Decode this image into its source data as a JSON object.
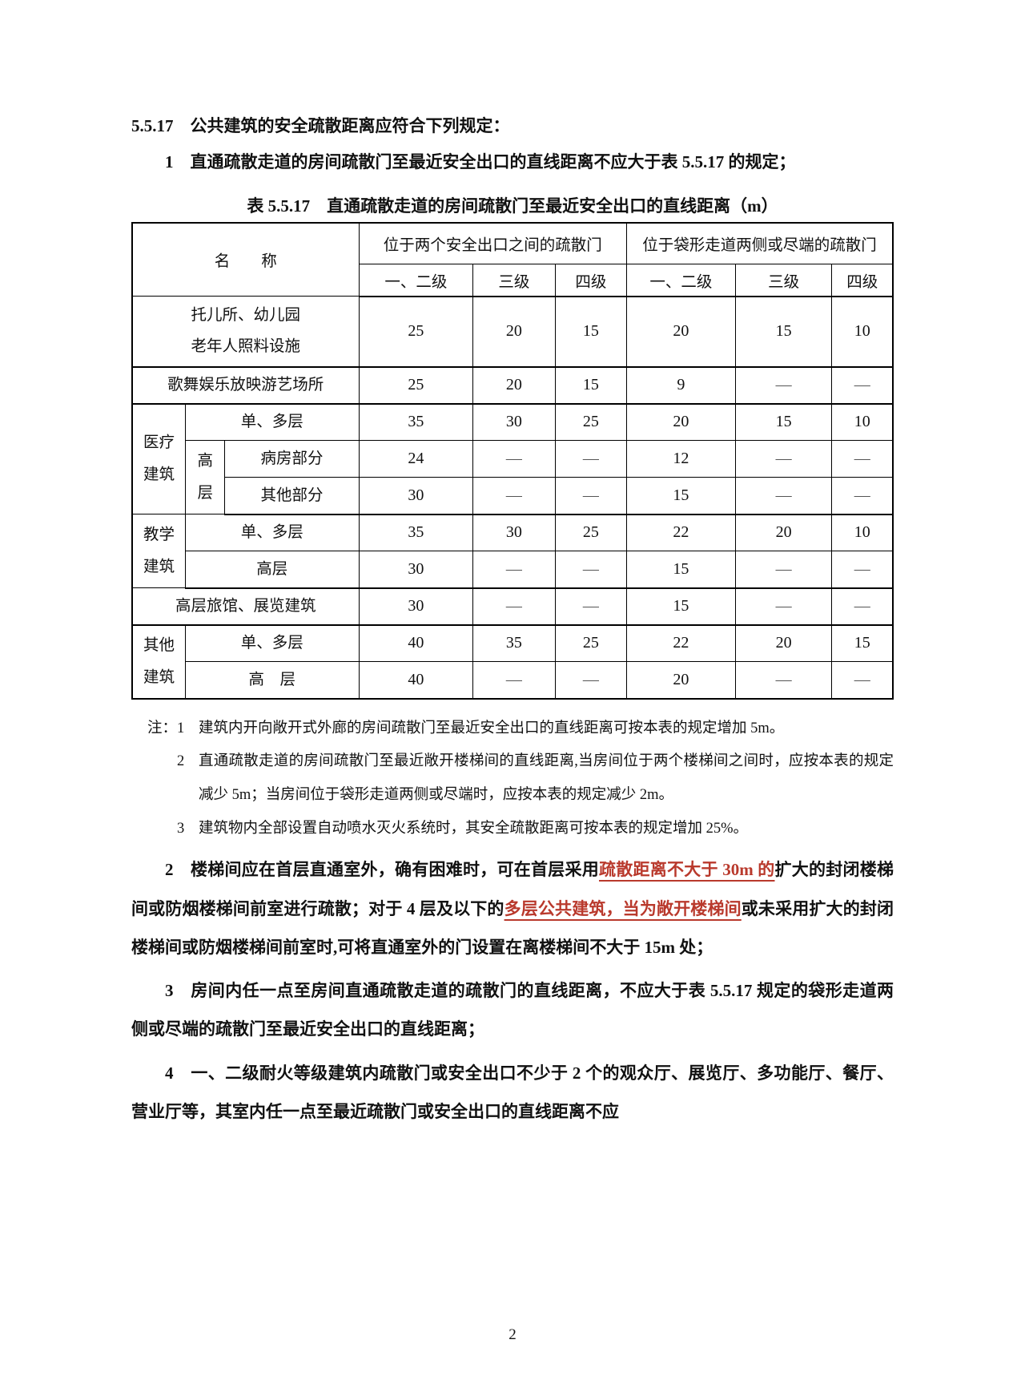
{
  "colors": {
    "red": "#b9392c",
    "ink": "#111111"
  },
  "page_number": "2",
  "heading": "5.5.17　公共建筑的安全疏散距离应符合下列规定：",
  "para1": {
    "segments": [
      {
        "t": "1　直通疏散走道的房间疏散门至最近安全出口的直线距离不应大于表 5.5.17 的规定；",
        "s": "n"
      }
    ]
  },
  "table": {
    "caption": "表 5.5.17　直通疏散走道的房间疏散门至最近安全出口的直线距离（m）",
    "header": {
      "name_label": "名　　称",
      "group1": "位于两个安全出口之间的疏散门",
      "group2": "位于袋形走道两侧或尽端的疏散门",
      "levels": [
        "一、二级",
        "三级",
        "四级",
        "一、二级",
        "三级",
        "四级"
      ]
    },
    "rows": [
      {
        "cells": [
          {
            "lines": [
              "托儿所、幼儿园",
              "老年人照料设施"
            ],
            "colspan": 3
          }
        ],
        "values": [
          "25",
          "20",
          "15",
          "20",
          "15",
          "10"
        ],
        "tall": true,
        "section_end": true
      },
      {
        "cells": [
          {
            "lines": [
              "歌舞娱乐放映游艺场所"
            ],
            "colspan": 3
          }
        ],
        "values": [
          "25",
          "20",
          "15",
          "9",
          "—",
          "—"
        ],
        "section_end": true
      },
      {
        "cells": [
          {
            "lines": [
              "医疗",
              "建筑"
            ],
            "rowspan": 3
          },
          {
            "lines": [
              "单、多层"
            ],
            "colspan": 2
          }
        ],
        "values": [
          "35",
          "30",
          "25",
          "20",
          "15",
          "10"
        ]
      },
      {
        "cells": [
          {
            "lines": [
              "高",
              "层"
            ],
            "rowspan": 2
          },
          {
            "lines": [
              "病房部分"
            ]
          }
        ],
        "values": [
          "24",
          "—",
          "—",
          "12",
          "—",
          "—"
        ]
      },
      {
        "cells": [
          {
            "lines": [
              "其他部分"
            ]
          }
        ],
        "values": [
          "30",
          "—",
          "—",
          "15",
          "—",
          "—"
        ],
        "section_end": true
      },
      {
        "cells": [
          {
            "lines": [
              "教学",
              "建筑"
            ],
            "rowspan": 2
          },
          {
            "lines": [
              "单、多层"
            ],
            "colspan": 2
          }
        ],
        "values": [
          "35",
          "30",
          "25",
          "22",
          "20",
          "10"
        ]
      },
      {
        "cells": [
          {
            "lines": [
              "高层"
            ],
            "colspan": 2
          }
        ],
        "values": [
          "30",
          "—",
          "—",
          "15",
          "—",
          "—"
        ],
        "section_end": true
      },
      {
        "cells": [
          {
            "lines": [
              "高层旅馆、展览建筑"
            ],
            "colspan": 3
          }
        ],
        "values": [
          "30",
          "—",
          "—",
          "15",
          "—",
          "—"
        ],
        "section_end": true
      },
      {
        "cells": [
          {
            "lines": [
              "其他",
              "建筑"
            ],
            "rowspan": 2
          },
          {
            "lines": [
              "单、多层"
            ],
            "colspan": 2
          }
        ],
        "values": [
          "40",
          "35",
          "25",
          "22",
          "20",
          "15"
        ]
      },
      {
        "cells": [
          {
            "lines": [
              "高　层"
            ],
            "colspan": 2
          }
        ],
        "values": [
          "40",
          "—",
          "—",
          "20",
          "—",
          "—"
        ]
      }
    ]
  },
  "notes": {
    "label": "注：",
    "items": [
      {
        "num": "1",
        "text": "建筑内开向敞开式外廊的房间疏散门至最近安全出口的直线距离可按本表的规定增加 5m。"
      },
      {
        "num": "2",
        "text": "直通疏散走道的房间疏散门至最近敞开楼梯间的直线距离,当房间位于两个楼梯间之间时，应按本表的规定减少 5m；当房间位于袋形走道两侧或尽端时，应按本表的规定减少 2m。"
      },
      {
        "num": "3",
        "text": "建筑物内全部设置自动喷水灭火系统时，其安全疏散距离可按本表的规定增加 25%。"
      }
    ]
  },
  "paragraphs": [
    {
      "segments": [
        {
          "t": "2　楼梯间应在首层直通室外，确有困难时，可在首层采用",
          "s": "n"
        },
        {
          "t": "疏散距离不大于 30m 的",
          "s": "r"
        },
        {
          "t": "扩大的封闭楼梯间或防烟楼梯间前室进行疏散；对于 4 层及以下的",
          "s": "n"
        },
        {
          "t": "多层公共建筑，当为敞开楼梯间",
          "s": "r"
        },
        {
          "t": "或未采用扩大的封闭楼梯间或防烟楼梯间前室时,可将直通室外的门设置在离楼梯间不大于 15m 处；",
          "s": "n"
        }
      ]
    },
    {
      "segments": [
        {
          "t": "3　房间内任一点至房间直通疏散走道的疏散门的直线距离，不应大于表 5.5.17 规定的袋形走道两侧或尽端的疏散门至最近安全出口的直线距离；",
          "s": "n"
        }
      ]
    },
    {
      "segments": [
        {
          "t": "4　一、二级耐火等级建筑内疏散门或安全出口不少于 2 个的观众厅、展览厅、多功能厅、餐厅、营业厅等，其室内任一点至最近疏散门或安全出口的直线距离不应",
          "s": "n"
        }
      ]
    }
  ]
}
